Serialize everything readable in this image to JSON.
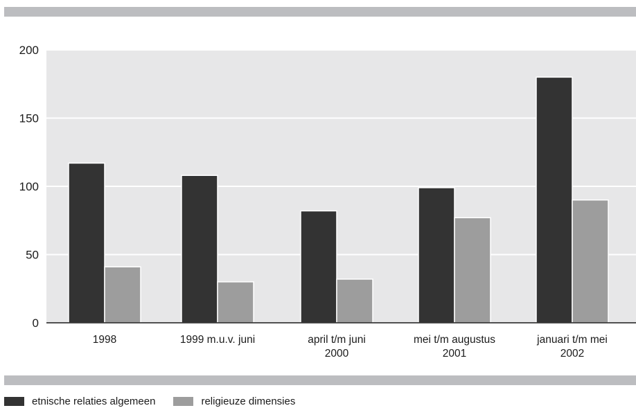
{
  "chart_data": {
    "type": "bar",
    "categories": [
      [
        "1998"
      ],
      [
        "1999 m.u.v. juni"
      ],
      [
        "april t/m juni",
        "2000"
      ],
      [
        "mei t/m augustus",
        "2001"
      ],
      [
        "januari t/m mei",
        "2002"
      ]
    ],
    "series": [
      {
        "name": "etnische relaties algemeen",
        "values": [
          117,
          108,
          82,
          99,
          180
        ],
        "color": "#333333"
      },
      {
        "name": "religieuze dimensies",
        "values": [
          41,
          30,
          32,
          77,
          90
        ],
        "color": "#9d9d9d"
      }
    ],
    "ylim": [
      0,
      200
    ],
    "yticks": [
      "0",
      "50",
      "100",
      "150",
      "200"
    ],
    "grid": true,
    "legend_position": "bottom-left",
    "plot_background": "#e7e7e8"
  }
}
